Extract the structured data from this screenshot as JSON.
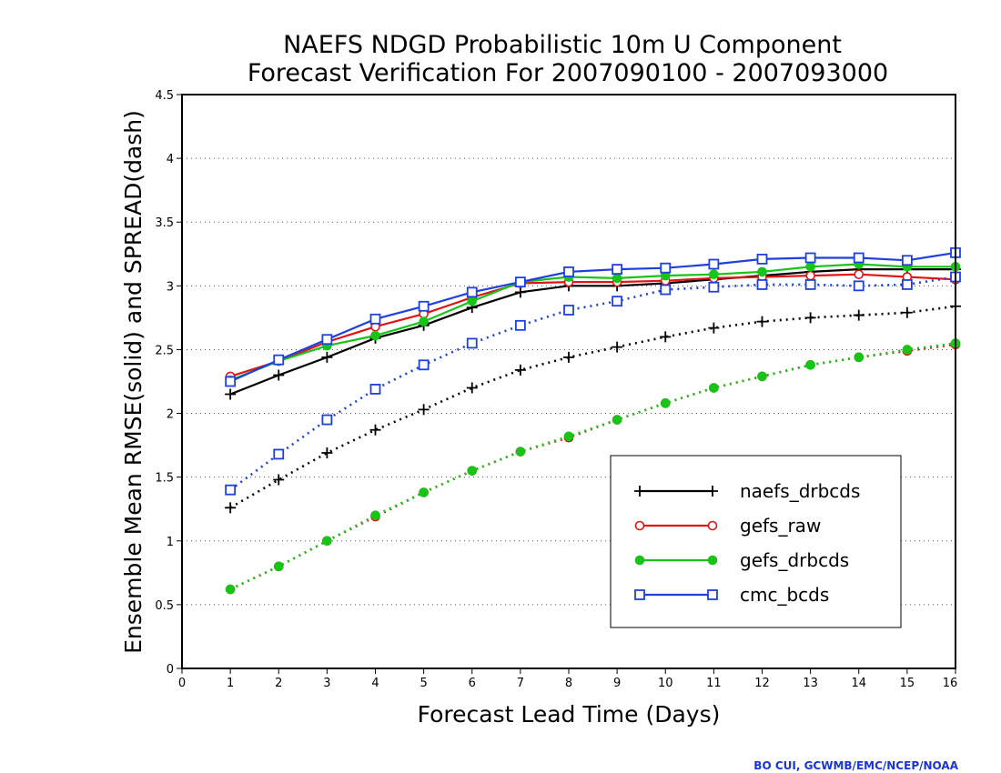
{
  "chart_data": {
    "type": "line",
    "title": [
      "NAEFS NDGD Probabilistic 10m U Component",
      "Forecast Verification For 2007090100 - 2007093000"
    ],
    "xlabel": "Forecast Lead Time (Days)",
    "ylabel": "Ensemble Mean RMSE(solid) and SPREAD(dash)",
    "xlim": [
      0,
      16
    ],
    "ylim": [
      0,
      4.5
    ],
    "xticks": [
      0,
      1,
      2,
      3,
      4,
      5,
      6,
      7,
      8,
      9,
      10,
      11,
      12,
      13,
      14,
      15,
      16
    ],
    "yticks": [
      0,
      0.5,
      1,
      1.5,
      2,
      2.5,
      3,
      3.5,
      4,
      4.5
    ],
    "ytick_labels": [
      "0",
      "0.5",
      "1",
      "1.5",
      "2",
      "2.5",
      "3",
      "3.5",
      "4",
      "4.5"
    ],
    "grid": "horizontal dotted",
    "legend_position": "lower-right",
    "x": [
      1,
      2,
      3,
      4,
      5,
      6,
      7,
      8,
      9,
      10,
      11,
      12,
      13,
      14,
      15,
      16
    ],
    "series": [
      {
        "name": "naefs_drbcds",
        "color": "#000000",
        "marker": "plus",
        "kind": "rmse",
        "values": [
          2.15,
          2.3,
          2.44,
          2.59,
          2.69,
          2.83,
          2.95,
          3.0,
          3.0,
          3.02,
          3.05,
          3.08,
          3.11,
          3.13,
          3.13,
          3.13
        ]
      },
      {
        "name": "gefs_raw",
        "color": "#e01414",
        "marker": "circle",
        "kind": "rmse",
        "values": [
          2.29,
          2.41,
          2.56,
          2.68,
          2.78,
          2.91,
          3.02,
          3.03,
          3.03,
          3.04,
          3.06,
          3.07,
          3.08,
          3.09,
          3.07,
          3.05
        ]
      },
      {
        "name": "gefs_drbcds",
        "color": "#17c417",
        "marker": "dot",
        "kind": "rmse",
        "values": [
          2.26,
          2.41,
          2.53,
          2.61,
          2.72,
          2.88,
          3.03,
          3.07,
          3.06,
          3.08,
          3.09,
          3.11,
          3.15,
          3.17,
          3.15,
          3.15
        ]
      },
      {
        "name": "cmc_bcds",
        "color": "#1f3fe0",
        "marker": "square",
        "kind": "rmse",
        "values": [
          2.25,
          2.42,
          2.58,
          2.74,
          2.84,
          2.95,
          3.03,
          3.11,
          3.13,
          3.14,
          3.17,
          3.21,
          3.22,
          3.22,
          3.2,
          3.26
        ]
      },
      {
        "name": "naefs_drbcds spread",
        "color": "#000000",
        "marker": "plus",
        "kind": "spread",
        "values": [
          1.26,
          1.48,
          1.69,
          1.87,
          2.03,
          2.2,
          2.34,
          2.44,
          2.52,
          2.6,
          2.67,
          2.72,
          2.75,
          2.77,
          2.79,
          2.84
        ]
      },
      {
        "name": "gefs_raw spread",
        "color": "#e01414",
        "marker": "circle",
        "kind": "spread",
        "values": [
          0.62,
          0.8,
          1.0,
          1.19,
          1.38,
          1.55,
          1.7,
          1.81,
          1.95,
          2.08,
          2.2,
          2.29,
          2.38,
          2.44,
          2.49,
          2.54
        ]
      },
      {
        "name": "gefs_drbcds spread",
        "color": "#17c417",
        "marker": "dot",
        "kind": "spread",
        "values": [
          0.62,
          0.8,
          1.0,
          1.2,
          1.38,
          1.55,
          1.7,
          1.82,
          1.95,
          2.08,
          2.2,
          2.29,
          2.38,
          2.44,
          2.5,
          2.55
        ]
      },
      {
        "name": "cmc_bcds spread",
        "color": "#1f3fe0",
        "marker": "square",
        "kind": "spread",
        "values": [
          1.4,
          1.68,
          1.95,
          2.19,
          2.38,
          2.55,
          2.69,
          2.81,
          2.88,
          2.97,
          2.99,
          3.01,
          3.01,
          3.0,
          3.01,
          3.07
        ]
      }
    ],
    "legend": [
      {
        "label": "naefs_drbcds",
        "color": "#000000",
        "marker": "plus"
      },
      {
        "label": "gefs_raw",
        "color": "#e01414",
        "marker": "circle"
      },
      {
        "label": "gefs_drbcds",
        "color": "#17c417",
        "marker": "dot"
      },
      {
        "label": "cmc_bcds",
        "color": "#1f3fe0",
        "marker": "square"
      }
    ]
  },
  "credit": "BO CUI, GCWMB/EMC/NCEP/NOAA"
}
